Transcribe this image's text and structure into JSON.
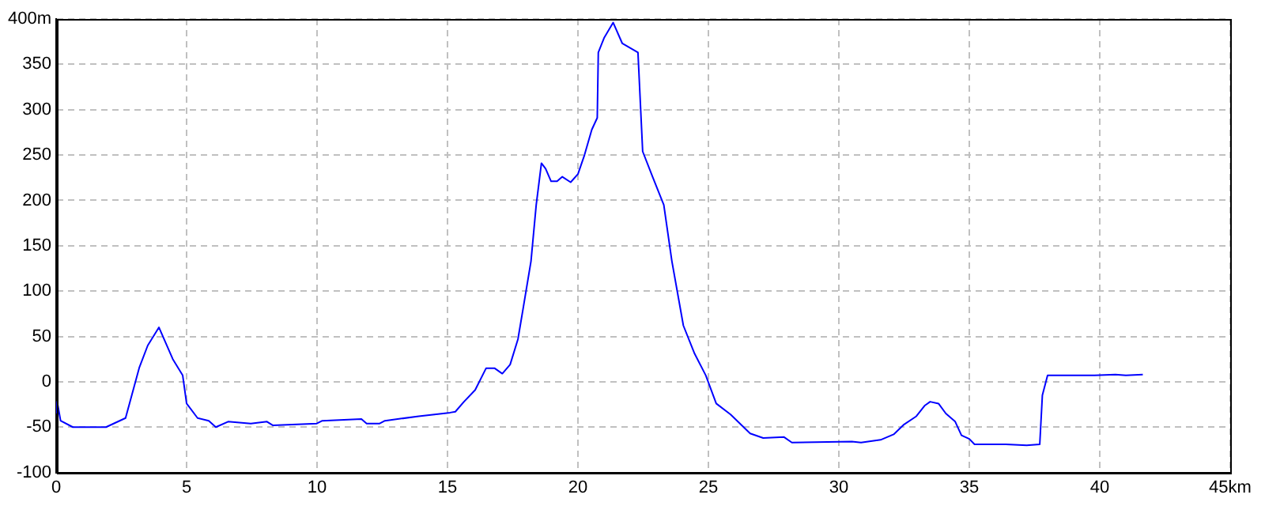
{
  "chart_data": {
    "type": "line",
    "x": [
      0,
      0.04,
      0.17,
      0.64,
      1.91,
      2.66,
      3.19,
      3.51,
      3.94,
      4.47,
      4.85,
      5.0,
      5.42,
      5.85,
      6.12,
      6.59,
      7.46,
      8.08,
      8.3,
      9.99,
      10.2,
      11.7,
      11.9,
      12.4,
      12.6,
      13.9,
      15.1,
      15.3,
      15.63,
      16.06,
      16.48,
      16.8,
      17.1,
      17.4,
      17.7,
      17.9,
      18.2,
      18.4,
      18.6,
      18.76,
      18.97,
      19.2,
      19.4,
      19.72,
      20.0,
      20.25,
      20.53,
      20.74,
      20.78,
      21.0,
      21.35,
      21.7,
      22.3,
      22.48,
      22.86,
      23.29,
      23.6,
      24.04,
      24.47,
      24.9,
      25.3,
      25.85,
      26.6,
      27.1,
      27.9,
      28.2,
      30.5,
      30.85,
      31.6,
      32.1,
      32.5,
      32.97,
      33.3,
      33.5,
      33.82,
      34.1,
      34.46,
      34.7,
      35.0,
      35.2,
      35.6,
      36.4,
      37.2,
      37.7,
      37.8,
      38.0,
      38.3,
      39.8,
      40.6,
      41.0,
      41.65
    ],
    "series": [
      {
        "color": "#0000ff",
        "values": [
          -35,
          -22,
          -43,
          -50,
          -50,
          -40,
          16,
          40,
          60,
          25,
          7,
          -24,
          -40,
          -43,
          -50,
          -44,
          -46,
          -44,
          -48,
          -46,
          -43,
          -41,
          -46,
          -46,
          -43,
          -38,
          -34,
          -33,
          -22,
          -9,
          15,
          15,
          9,
          19,
          47,
          81,
          133,
          195,
          241,
          235,
          221,
          221,
          226,
          220,
          229,
          250,
          278,
          291,
          363,
          379,
          396,
          373,
          363,
          254,
          226,
          195,
          133,
          62,
          31,
          7,
          -24,
          -36,
          -57,
          -62,
          -61,
          -67,
          -66,
          -67,
          -64,
          -58,
          -47,
          -38,
          -26,
          -22,
          -24,
          -35,
          -44,
          -59,
          -63,
          -69,
          -69,
          -69,
          -70,
          -69,
          -15,
          7,
          7,
          7,
          8,
          7,
          8
        ]
      }
    ],
    "xlim": [
      0,
      45
    ],
    "xticks": [
      0,
      5,
      10,
      15,
      20,
      25,
      30,
      35,
      40,
      {
        "value": 45,
        "label": "45km"
      }
    ],
    "ylim": [
      -100,
      400
    ],
    "yticks": [
      -100,
      -50,
      0,
      50,
      100,
      150,
      200,
      250,
      300,
      350,
      {
        "value": 400,
        "label": "400m"
      }
    ],
    "grid": true,
    "legend": false,
    "marker": "none",
    "line_style": "solid"
  }
}
